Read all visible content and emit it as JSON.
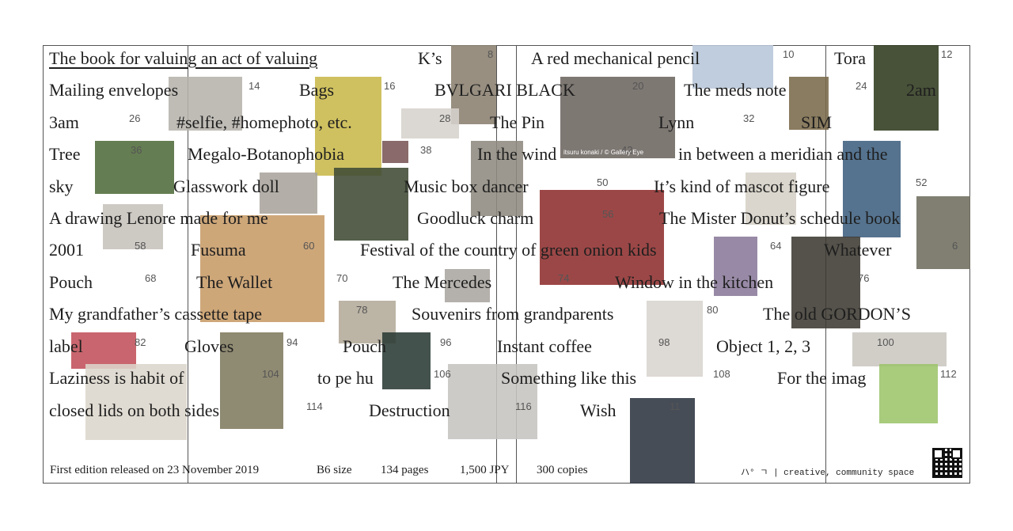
{
  "book_title": "The book for valuing an act of valuing",
  "entries": [
    {
      "label": "K’s",
      "num": "8"
    },
    {
      "label": "A red mechanical pencil",
      "num": "10"
    },
    {
      "label": "Tora",
      "num": "12"
    },
    {
      "label": "Mailing envelopes",
      "num": "14"
    },
    {
      "label": "Bags",
      "num": "16"
    },
    {
      "label": "BVLGARI BLACK",
      "num": "20"
    },
    {
      "label": "The meds note",
      "num": "24"
    },
    {
      "label": "2am",
      "num": ""
    },
    {
      "label": "3am",
      "num": "26"
    },
    {
      "label": "#selfie, #homephoto, etc.",
      "num": "28"
    },
    {
      "label": "The Pin",
      "num": ""
    },
    {
      "label": "Lynn",
      "num": "32"
    },
    {
      "label": "SIM",
      "num": ""
    },
    {
      "label": "Tree",
      "num": "36"
    },
    {
      "label": "Megalo-Botanophobia",
      "num": "38"
    },
    {
      "label": "In the wind",
      "num": "42"
    },
    {
      "label": "in between a meridian and the",
      "num": ""
    },
    {
      "label": "sky",
      "num": ""
    },
    {
      "label": "Glasswork doll",
      "num": "4"
    },
    {
      "label": "Music box dancer",
      "num": "50"
    },
    {
      "label": "It’s kind of mascot figure",
      "num": "52"
    },
    {
      "label": "A drawing Lenore made for me",
      "num": "58"
    },
    {
      "label": "Goodluck charm",
      "num": "56"
    },
    {
      "label": "The Mister Donut’s schedule book",
      "num": "6"
    },
    {
      "label": "2001",
      "num": "60"
    },
    {
      "label": "Fusuma",
      "num": ""
    },
    {
      "label": "Festival of the country of green onion kids",
      "num": "64"
    },
    {
      "label": "Whatever",
      "num": ""
    },
    {
      "label": "Pouch",
      "num": "68"
    },
    {
      "label": "The Wallet",
      "num": "70"
    },
    {
      "label": "The Mercedes",
      "num": "74"
    },
    {
      "label": "Window in the kitchen",
      "num": "76"
    },
    {
      "label": "My grandfather’s cassette tape",
      "num": "78"
    },
    {
      "label": "Souvenirs from grandparents",
      "num": "80"
    },
    {
      "label": "The old GORDON’S",
      "num": ""
    },
    {
      "label": "label",
      "num": "82"
    },
    {
      "label": "Gloves",
      "num": "94"
    },
    {
      "label": "Pouch",
      "num": "96"
    },
    {
      "label": "Instant coffee",
      "num": "98"
    },
    {
      "label": "Object 1, 2, 3",
      "num": "100"
    },
    {
      "label": "Laziness is habit of",
      "num": "104"
    },
    {
      "label": "to pe hu",
      "num": "106"
    },
    {
      "label": "Something like this",
      "num": "108"
    },
    {
      "label": "For the imag",
      "num": "112"
    },
    {
      "label": "closed lids on both sides",
      "num": "114"
    },
    {
      "label": "Destruction",
      "num": "116"
    },
    {
      "label": "Wish",
      "num": "11"
    }
  ],
  "photo_caption": "itsuru konaki / © Gallery Eye",
  "footer": {
    "release": "First edition released on 23 November 2019",
    "size": "B6 size",
    "pages": "134 pages",
    "price": "1,500 JPY",
    "copies": "300 copies",
    "brand_mark": "ハ° ㄱ",
    "brand_text": "| creative, community space"
  },
  "colors": {
    "frame": "#555555",
    "text": "#1e1e1e",
    "number": "#555555"
  },
  "icons": [
    "qr-code-icon"
  ]
}
